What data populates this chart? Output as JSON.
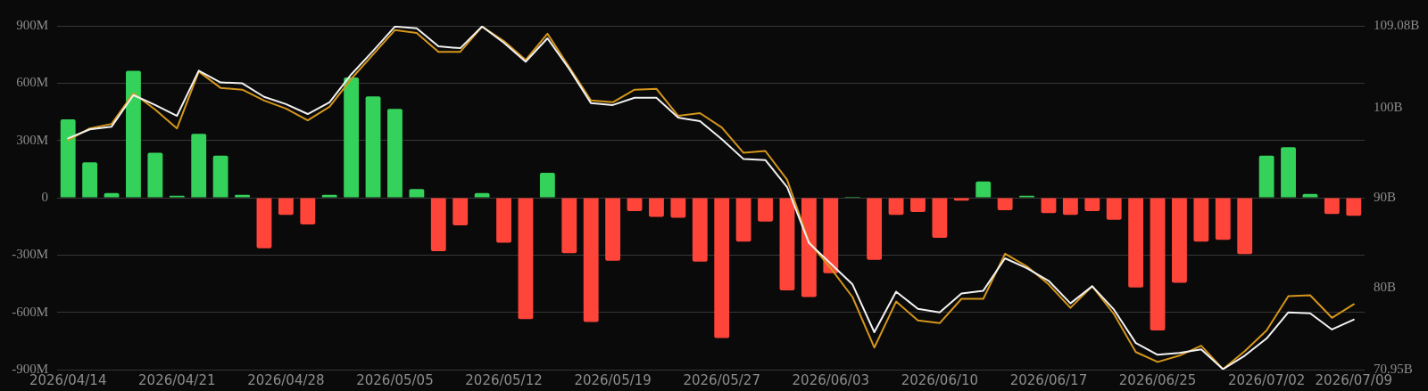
{
  "chart_data": {
    "type": "bar",
    "categories": [
      "2026/04/14",
      null,
      null,
      null,
      null,
      "2026/04/21",
      null,
      null,
      null,
      null,
      "2026/04/28",
      null,
      null,
      null,
      null,
      "2026/05/05",
      null,
      null,
      null,
      null,
      "2026/05/12",
      null,
      null,
      null,
      null,
      "2026/05/19",
      null,
      null,
      null,
      null,
      "2026/05/27",
      null,
      null,
      null,
      null,
      "2026/06/03",
      null,
      null,
      null,
      null,
      "2026/06/10",
      null,
      null,
      null,
      null,
      "2026/06/17",
      null,
      null,
      null,
      null,
      "2026/06/25",
      null,
      null,
      null,
      null,
      "2026/07/02",
      null,
      null,
      null,
      "2026/07/09"
    ],
    "series": [
      {
        "values": [
          410,
          185,
          25,
          665,
          235,
          10,
          335,
          220,
          15,
          -265,
          -90,
          -140,
          15,
          630,
          530,
          465,
          45,
          -280,
          -145,
          25,
          -235,
          -635,
          130,
          -290,
          -650,
          -330,
          -70,
          -100,
          -105,
          -335,
          -735,
          -230,
          -125,
          -485,
          -520,
          -395,
          5,
          -325,
          -90,
          -75,
          -210,
          -15,
          85,
          -65,
          10,
          -80,
          -90,
          -70,
          -115,
          -470,
          -695,
          -445,
          -230,
          -220,
          -295,
          220,
          265,
          20,
          -85,
          -95
        ],
        "colors": [
          "#34d25a",
          "#34d25a",
          "#34d25a",
          "#34d25a",
          "#34d25a",
          "#34d25a",
          "#34d25a",
          "#34d25a",
          "#34d25a",
          "#ff453a",
          "#ff453a",
          "#ff453a",
          "#34d25a",
          "#34d25a",
          "#34d25a",
          "#34d25a",
          "#34d25a",
          "#ff453a",
          "#ff453a",
          "#34d25a",
          "#ff453a",
          "#ff453a",
          "#34d25a",
          "#ff453a",
          "#ff453a",
          "#ff453a",
          "#ff453a",
          "#ff453a",
          "#ff453a",
          "#ff453a",
          "#ff453a",
          "#ff453a",
          "#ff453a",
          "#ff453a",
          "#ff453a",
          "#ff453a",
          "#34d25a",
          "#ff453a",
          "#ff453a",
          "#ff453a",
          "#ff453a",
          "#ff453a",
          "#34d25a",
          "#ff453a",
          "#34d25a",
          "#ff453a",
          "#ff453a",
          "#ff453a",
          "#ff453a",
          "#ff453a",
          "#ff453a",
          "#ff453a",
          "#ff453a",
          "#ff453a",
          "#ff453a",
          "#34d25a",
          "#34d25a",
          "#34d25a",
          "#ff453a",
          "#ff453a"
        ]
      },
      {
        "type": "line",
        "axis": "y2",
        "color": "#f2f2f2",
        "values": [
          96.6,
          97.6,
          97.9,
          101.4,
          100.3,
          99.1,
          104.1,
          102.8,
          102.7,
          101.2,
          100.4,
          99.3,
          100.6,
          103.7,
          106.3,
          109.0,
          108.8,
          106.8,
          106.6,
          109.0,
          107.2,
          105.1,
          107.7,
          104.3,
          100.5,
          100.3,
          101.1,
          101.1,
          98.9,
          98.5,
          96.5,
          94.3,
          94.2,
          91.2,
          85.0,
          82.7,
          80.4,
          75.1,
          79.6,
          77.7,
          77.3,
          79.4,
          79.7,
          83.3,
          82.2,
          80.8,
          78.3,
          80.2,
          77.6,
          73.9,
          72.6,
          72.8,
          73.2,
          71.0,
          72.5,
          74.4,
          77.3,
          77.2,
          75.4,
          76.5
        ]
      },
      {
        "type": "line",
        "axis": "y2",
        "color": "#d4961a",
        "values": [
          96.4,
          97.7,
          98.2,
          101.6,
          99.8,
          97.7,
          104.0,
          102.2,
          102.0,
          100.8,
          99.9,
          98.6,
          100.1,
          103.2,
          105.9,
          108.6,
          108.3,
          106.2,
          106.2,
          109.0,
          107.4,
          105.3,
          108.2,
          104.5,
          100.8,
          100.6,
          102.0,
          102.1,
          99.1,
          99.4,
          97.8,
          95.0,
          95.2,
          92.0,
          85.1,
          82.2,
          79.0,
          73.4,
          78.5,
          76.4,
          76.1,
          78.8,
          78.8,
          83.8,
          82.4,
          80.4,
          77.8,
          80.2,
          77.1,
          72.9,
          71.8,
          72.5,
          73.6,
          71.0,
          73.0,
          75.3,
          79.1,
          79.2,
          76.7,
          78.2
        ]
      }
    ],
    "ylim": [
      -900,
      900
    ],
    "yticks": [
      {
        "value": -900,
        "label": "-900M"
      },
      {
        "value": -600,
        "label": "-600M"
      },
      {
        "value": -300,
        "label": "-300M"
      },
      0,
      {
        "value": 300,
        "label": "300M"
      },
      {
        "value": 600,
        "label": "600M"
      },
      {
        "value": 900,
        "label": "900M"
      }
    ],
    "y2lim": [
      70.95,
      109.08
    ],
    "y2ticks": [
      {
        "value": 70.95,
        "label": "70.95B"
      },
      {
        "value": 80,
        "label": "80B"
      },
      {
        "value": 90,
        "label": "90B"
      },
      {
        "value": 100,
        "label": "100B"
      },
      {
        "value": 109.08,
        "label": "109.08B"
      }
    ],
    "grid": "y"
  }
}
